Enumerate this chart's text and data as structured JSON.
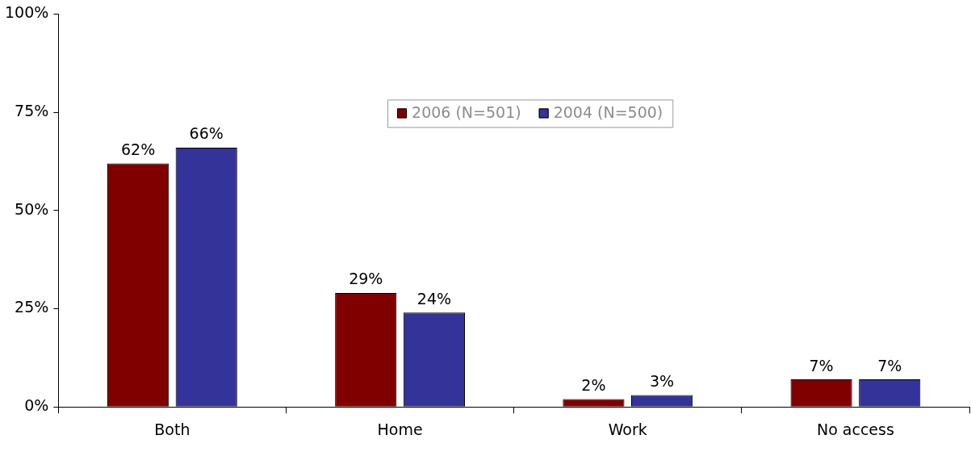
{
  "chart_data": {
    "type": "bar",
    "categories": [
      "Both",
      "Home",
      "Work",
      "No access"
    ],
    "series": [
      {
        "name": "2006 (N=501)",
        "color": "#800000",
        "values": [
          62,
          29,
          2,
          7
        ],
        "value_labels": [
          "62%",
          "29%",
          "2%",
          "7%"
        ]
      },
      {
        "name": "2004 (N=500)",
        "color": "#333399",
        "values": [
          66,
          24,
          3,
          7
        ],
        "value_labels": [
          "66%",
          "24%",
          "3%",
          "7%"
        ]
      }
    ],
    "ylim": [
      0,
      100
    ],
    "yticks": [
      {
        "value": 0,
        "label": "0%"
      },
      {
        "value": 25,
        "label": "25%"
      },
      {
        "value": 50,
        "label": "50%"
      },
      {
        "value": 75,
        "label": "75%"
      },
      {
        "value": 100,
        "label": "100%"
      }
    ],
    "grid": false,
    "legend": "top"
  }
}
